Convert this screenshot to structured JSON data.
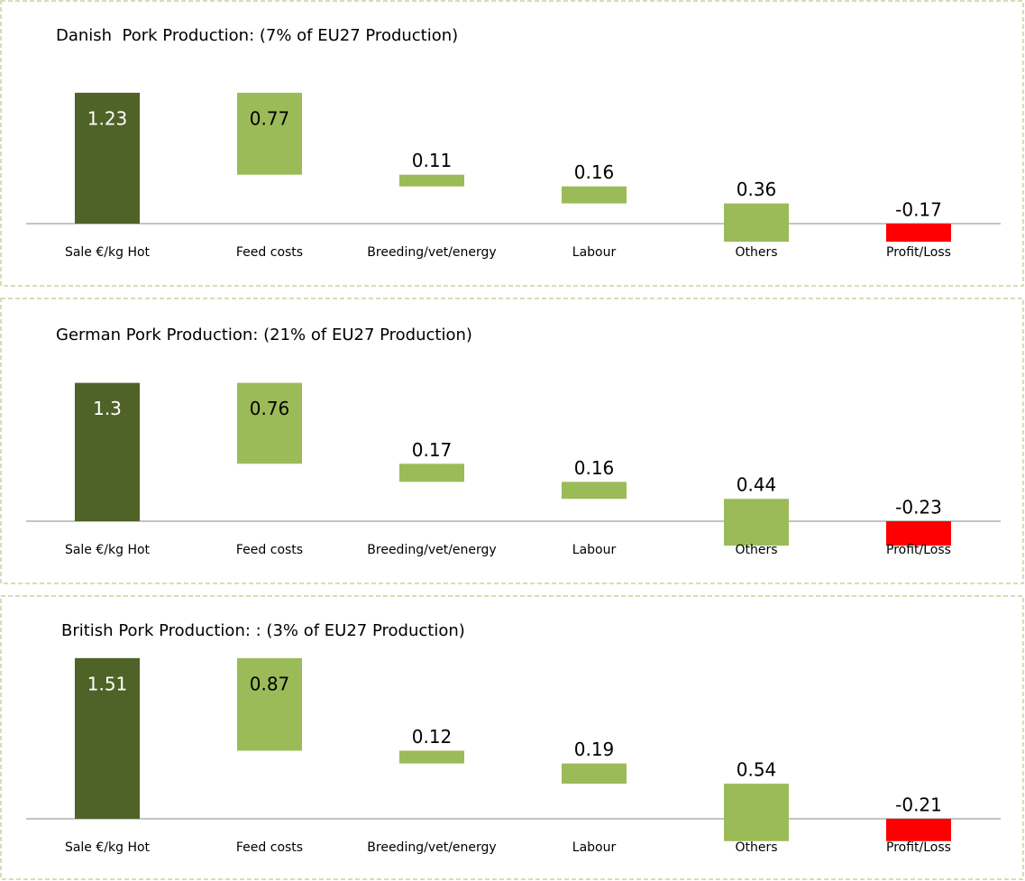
{
  "chart_data": [
    {
      "type": "waterfall",
      "title": "Danish  Pork Production: (7% of EU27 Production)",
      "categories": [
        "Sale €/kg Hot",
        "Feed costs",
        "Breeding/vet/energy",
        "Labour",
        "Others",
        "Profit/Loss"
      ],
      "values": [
        1.23,
        0.77,
        0.11,
        0.16,
        0.36,
        -0.17
      ],
      "colors": [
        "#4f6228",
        "#9bbb59",
        "#9bbb59",
        "#9bbb59",
        "#9bbb59",
        "#ff0000"
      ]
    },
    {
      "type": "waterfall",
      "title": "German Pork Production: (21% of EU27 Production)",
      "categories": [
        "Sale €/kg Hot",
        "Feed costs",
        "Breeding/vet/energy",
        "Labour",
        "Others",
        "Profit/Loss"
      ],
      "values": [
        1.3,
        0.76,
        0.17,
        0.16,
        0.44,
        -0.23
      ],
      "colors": [
        "#4f6228",
        "#9bbb59",
        "#9bbb59",
        "#9bbb59",
        "#9bbb59",
        "#ff0000"
      ]
    },
    {
      "type": "waterfall",
      "title": "British Pork Production: : (3% of EU27 Production)",
      "categories": [
        "Sale €/kg Hot",
        "Feed costs",
        "Breeding/vet/energy",
        "Labour",
        "Others",
        "Profit/Loss"
      ],
      "values": [
        1.51,
        0.87,
        0.12,
        0.19,
        0.54,
        -0.21
      ],
      "colors": [
        "#4f6228",
        "#9bbb59",
        "#9bbb59",
        "#9bbb59",
        "#9bbb59",
        "#ff0000"
      ]
    }
  ]
}
